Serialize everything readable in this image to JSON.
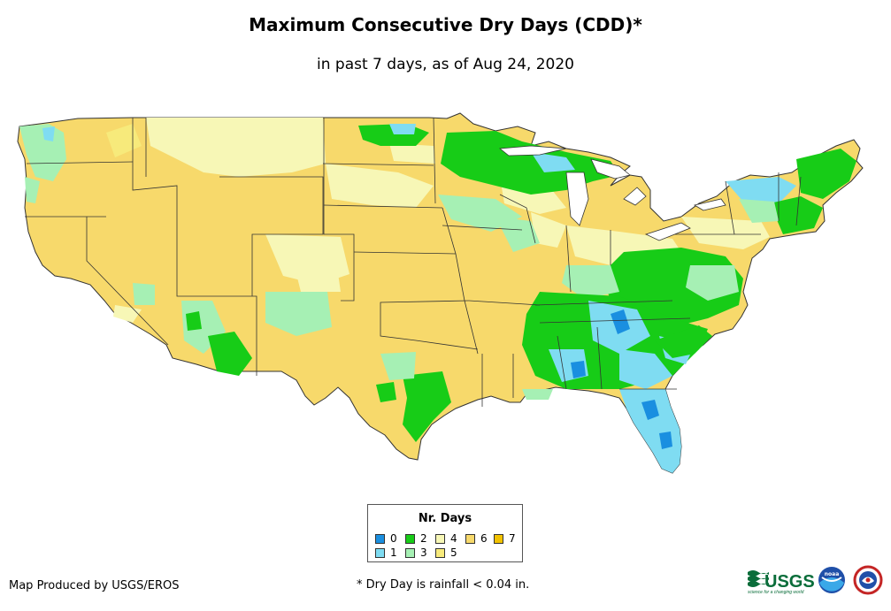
{
  "title": "Maximum Consecutive Dry Days (CDD)*",
  "subtitle": "in past 7 days, as of Aug 24, 2020",
  "legend": {
    "title": "Nr. Days",
    "items": [
      {
        "label": "0",
        "color": "#1a8fe0"
      },
      {
        "label": "1",
        "color": "#7fdcf2"
      },
      {
        "label": "2",
        "color": "#17cc17"
      },
      {
        "label": "3",
        "color": "#a6f0b4"
      },
      {
        "label": "4",
        "color": "#f7f7b6"
      },
      {
        "label": "5",
        "color": "#f7ea7b"
      },
      {
        "label": "6",
        "color": "#f7d96b"
      },
      {
        "label": "7",
        "color": "#f2c200"
      }
    ]
  },
  "footer": {
    "credit": "Map Produced by USGS/EROS",
    "note": "* Dry Day is rainfall < 0.04 in."
  },
  "logos": {
    "usgs": "USGS",
    "usgs_tagline": "science for a changing world",
    "noaa": "noaa"
  },
  "colors": {
    "base": "#f7d96b",
    "border": "#333333"
  }
}
